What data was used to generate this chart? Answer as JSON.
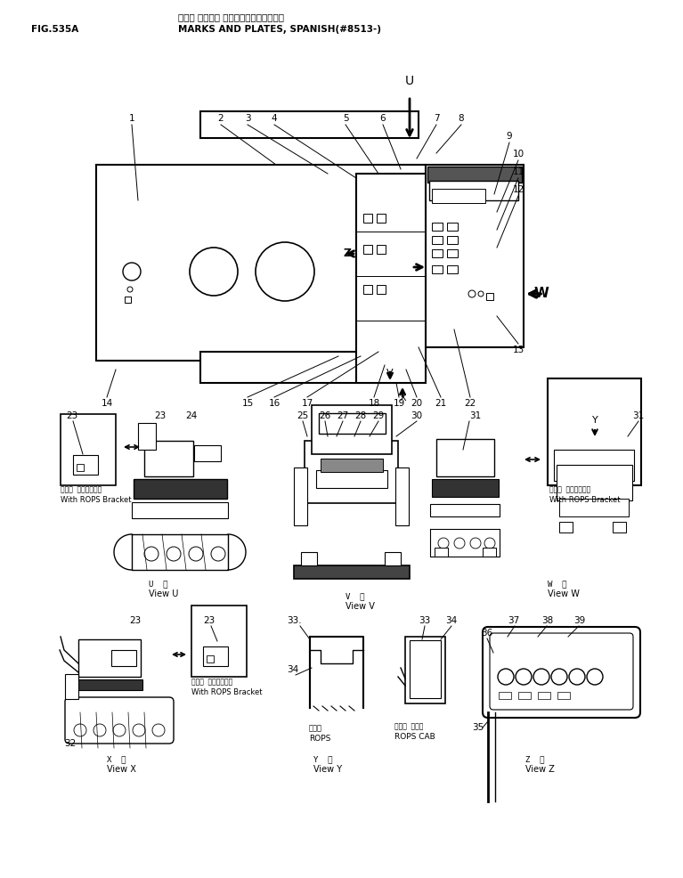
{
  "title_japanese": "マーク オヨビ・ プレート（スペインゴ）",
  "title_english": "MARKS AND PLATES, SPANISH(#8513-)",
  "fig_label": "FIG.535A",
  "bg_color": "#ffffff",
  "line_color": "#000000",
  "text_color": "#000000",
  "figsize": [
    7.67,
    9.86
  ],
  "dpi": 100
}
